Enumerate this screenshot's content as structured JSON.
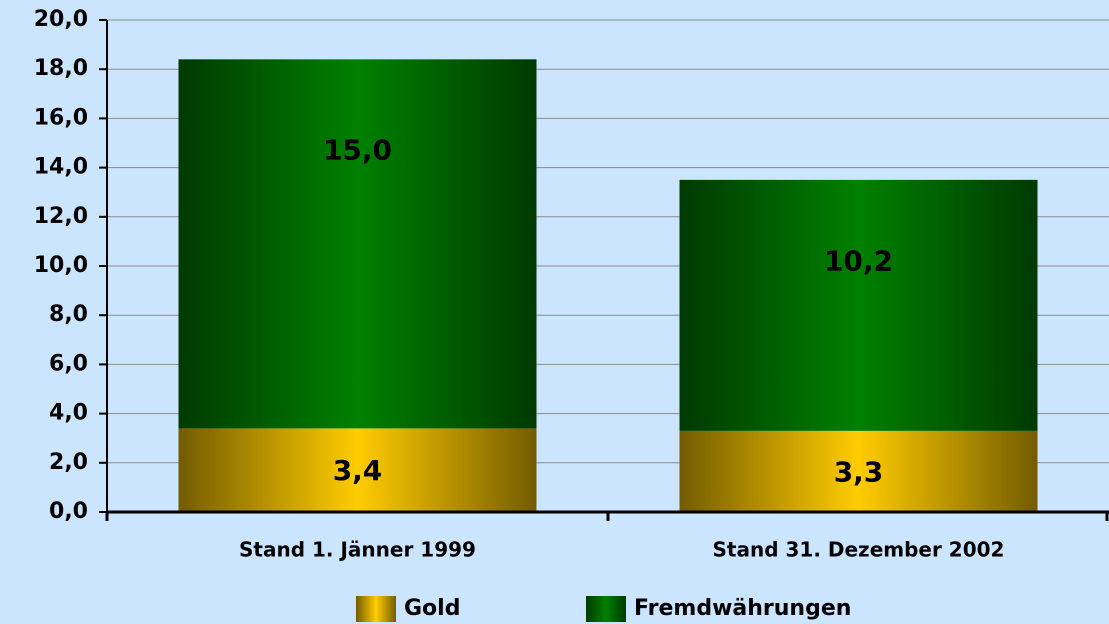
{
  "chart_data": {
    "type": "bar",
    "stacked": true,
    "categories": [
      "Stand 1. Jänner 1999",
      "Stand 31. Dezember 2002"
    ],
    "series": [
      {
        "name": "Gold",
        "color": "#ffcc00",
        "values": [
          3.4,
          3.3
        ],
        "value_labels": [
          "3,4",
          "3,3"
        ]
      },
      {
        "name": "Fremdwährungen",
        "color": "#008000",
        "values": [
          15.0,
          10.2
        ],
        "value_labels": [
          "15,0",
          "10,2"
        ]
      }
    ],
    "ylim": [
      0,
      20
    ],
    "yticks": [
      {
        "value": 0,
        "label": "0,0"
      },
      {
        "value": 2,
        "label": "2,0"
      },
      {
        "value": 4,
        "label": "4,0"
      },
      {
        "value": 6,
        "label": "6,0"
      },
      {
        "value": 8,
        "label": "8,0"
      },
      {
        "value": 10,
        "label": "10,0"
      },
      {
        "value": 12,
        "label": "12,0"
      },
      {
        "value": 14,
        "label": "14,0"
      },
      {
        "value": 16,
        "label": "16,0"
      },
      {
        "value": 18,
        "label": "18,0"
      },
      {
        "value": 20,
        "label": "20,0"
      }
    ],
    "grid": true,
    "legend": "bottom"
  }
}
